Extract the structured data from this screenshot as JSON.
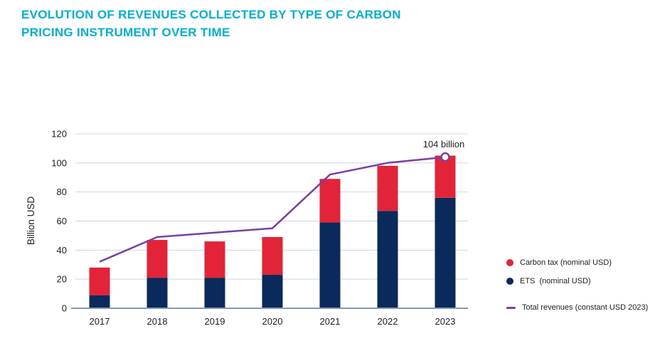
{
  "title": {
    "line1": "EVOLUTION OF REVENUES COLLECTED BY TYPE OF CARBON",
    "line2": "PRICING INSTRUMENT OVER TIME"
  },
  "colors": {
    "title_accent": "#00b2d4",
    "carbon_tax_red": "#e32438",
    "ets_navy": "#0a2a5c",
    "total_line_purple": "#7b3fa0",
    "gridline": "#ccd6e3",
    "axis_line": "#8498b8",
    "text_dark": "#1e1e1e"
  },
  "chart_data": {
    "type": "bar",
    "stacked": true,
    "title": "EVOLUTION OF REVENUES COLLECTED BY TYPE OF CARBON PRICING INSTRUMENT OVER TIME",
    "categories": [
      "2017",
      "2018",
      "2019",
      "2020",
      "2021",
      "2022",
      "2023"
    ],
    "series": [
      {
        "name": "ETS  (nominal USD)",
        "color": "#0a2a5c",
        "values": [
          9,
          21,
          21,
          23,
          59,
          67,
          76
        ]
      },
      {
        "name": "Carbon tax (nominal USD)",
        "color": "#e32438",
        "values": [
          19,
          26,
          25,
          26,
          30,
          31,
          29
        ]
      }
    ],
    "line": {
      "name": "Total revenues (constant USD 2023)",
      "color": "#7b3fa0",
      "values": [
        32,
        49,
        52,
        55,
        92,
        100,
        104
      ],
      "end_marker": true
    },
    "annotation": {
      "text": "104 billion",
      "category": "2023",
      "value": 104
    },
    "xlabel": "",
    "ylabel": "Billion USD",
    "ylim": [
      0,
      120
    ],
    "yticks": [
      0,
      20,
      40,
      60,
      80,
      100,
      120
    ],
    "grid": true,
    "legend_position": "right"
  },
  "legend": {
    "items": [
      {
        "label": "Carbon tax (nominal USD)",
        "marker": "dot",
        "color": "#e32438"
      },
      {
        "label": "ETS  (nominal USD)",
        "marker": "dot",
        "color": "#0a2a5c"
      },
      {
        "label": "Total revenues (constant USD 2023)",
        "marker": "line",
        "color": "#7b3fa0"
      }
    ]
  }
}
